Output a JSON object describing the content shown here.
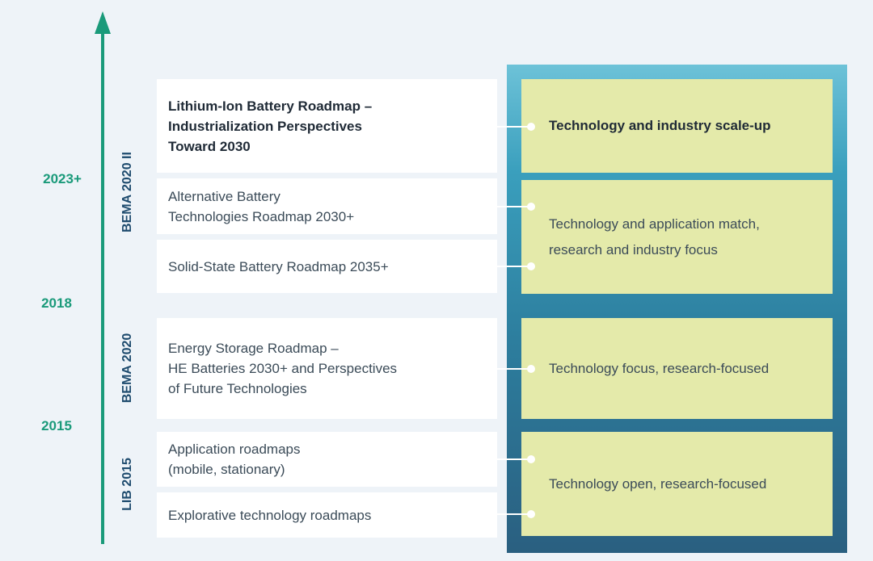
{
  "timeline": {
    "years": [
      "2023+",
      "2018",
      "2015"
    ],
    "phases": [
      "BEMA 2020 II",
      "BEMA 2020",
      "LIB 2015"
    ]
  },
  "roadmaps": [
    {
      "lines": [
        "Lithium-Ion Battery Roadmap –",
        "Industrialization Perspectives",
        "Toward 2030"
      ]
    },
    {
      "lines": [
        "Alternative Battery",
        "Technologies Roadmap 2030+"
      ]
    },
    {
      "lines": [
        "Solid-State Battery Roadmap 2035+"
      ]
    },
    {
      "lines": [
        "Energy Storage Roadmap –",
        "HE Batteries 2030+ and Perspectives",
        "of Future Technologies"
      ]
    },
    {
      "lines": [
        "Application roadmaps",
        "(mobile, stationary)"
      ]
    },
    {
      "lines": [
        "Explorative technology roadmaps"
      ]
    }
  ],
  "focus": [
    {
      "lines": [
        "Technology and industry scale-up"
      ]
    },
    {
      "lines": [
        "Technology and application match,",
        "research and industry focus"
      ]
    },
    {
      "lines": [
        "Technology focus, research-focused"
      ]
    },
    {
      "lines": [
        "Technology open, research-focused"
      ]
    }
  ],
  "colors": {
    "timeline_accent": "#1a9a7a",
    "phase_label": "#1e4b6e",
    "focus_box": "#e4eaaa",
    "panel_top": "#6dc2d8",
    "panel_bottom": "#2a5f80"
  }
}
